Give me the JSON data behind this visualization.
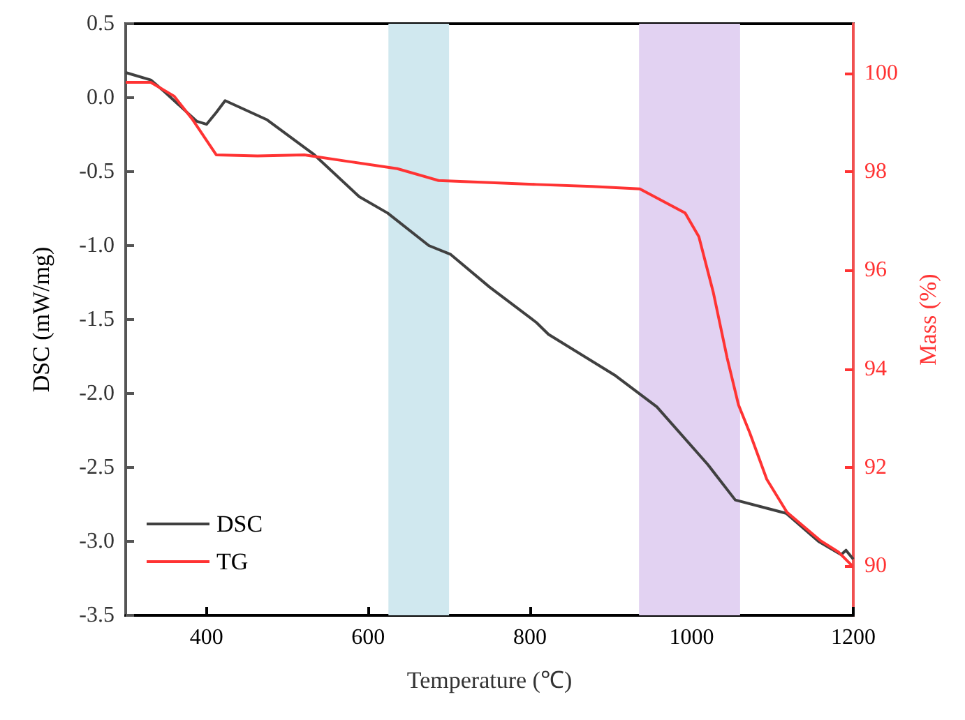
{
  "chart_data": {
    "type": "line",
    "xlabel": "Temperature (℃)",
    "ylabel": "DSC (mW/mg)",
    "y2label": "Mass (%)",
    "xlim": [
      300,
      1200
    ],
    "xticks": [
      400,
      600,
      800,
      1000,
      1200
    ],
    "ylim": [
      -3.5,
      0.5
    ],
    "yticks": [
      -3.5,
      {
        "value": -3,
        "label": "-3.0"
      },
      -2.5,
      {
        "value": -2,
        "label": "-2.0"
      },
      -1.5,
      {
        "value": -1,
        "label": "-1.0"
      },
      -0.5,
      {
        "value": 0,
        "label": "0.0"
      },
      0.5
    ],
    "y2lim": [
      89,
      101
    ],
    "y2ticks": [
      90,
      92,
      94,
      96,
      98,
      100
    ],
    "legend": "bottom left",
    "marker": "none",
    "line_style": "solid",
    "bands": [
      {
        "axis": "x",
        "from": 625,
        "to": 700,
        "color": "#d0e8ef"
      },
      {
        "axis": "x",
        "from": 935,
        "to": 1060,
        "color": "#e2d2f2"
      }
    ],
    "series": [
      {
        "name": "DSC",
        "color": "#404040",
        "x": [
          300,
          331,
          348,
          388,
          400,
          412,
          423,
          475,
          532,
          589,
          624,
          675,
          702,
          750,
          808,
          823,
          906,
          957,
          1020,
          1054,
          1089,
          1117,
          1157,
          1185,
          1191,
          1200
        ],
        "values": [
          0.17,
          0.12,
          0.04,
          -0.16,
          -0.18,
          -0.1,
          -0.02,
          -0.15,
          -0.38,
          -0.67,
          -0.78,
          -1.0,
          -1.06,
          -1.28,
          -1.52,
          -1.6,
          -1.88,
          -2.09,
          -2.48,
          -2.72,
          -2.77,
          -2.81,
          -3.0,
          -3.09,
          -3.06,
          -3.12
        ]
      },
      {
        "name": "TG",
        "color": "#ff3333",
        "axis": "y2",
        "x": [
          300,
          331,
          360,
          383,
          412,
          463,
          521,
          578,
          636,
          687,
          808,
          877,
          936,
          992,
          1009,
          1027,
          1044,
          1058,
          1072,
          1093,
          1118,
          1159,
          1182,
          1199
        ],
        "values": [
          99.81,
          99.81,
          99.53,
          99.05,
          98.34,
          98.32,
          98.34,
          98.2,
          98.06,
          97.82,
          97.74,
          97.7,
          97.65,
          97.16,
          96.68,
          95.54,
          94.22,
          93.27,
          92.7,
          91.76,
          91.09,
          90.52,
          90.28,
          90.0
        ]
      }
    ]
  }
}
